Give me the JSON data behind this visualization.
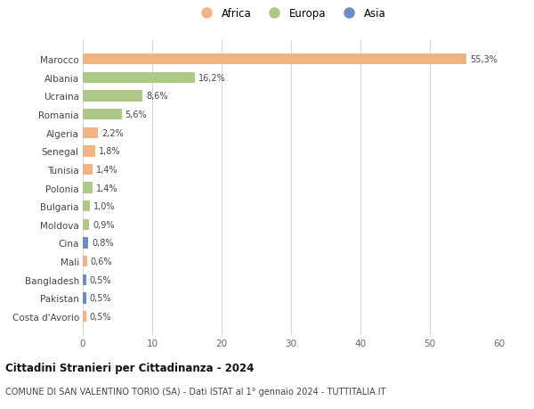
{
  "countries": [
    "Marocco",
    "Albania",
    "Ucraina",
    "Romania",
    "Algeria",
    "Senegal",
    "Tunisia",
    "Polonia",
    "Bulgaria",
    "Moldova",
    "Cina",
    "Mali",
    "Bangladesh",
    "Pakistan",
    "Costa d'Avorio"
  ],
  "values": [
    55.3,
    16.2,
    8.6,
    5.6,
    2.2,
    1.8,
    1.4,
    1.4,
    1.0,
    0.9,
    0.8,
    0.6,
    0.5,
    0.5,
    0.5
  ],
  "labels": [
    "55,3%",
    "16,2%",
    "8,6%",
    "5,6%",
    "2,2%",
    "1,8%",
    "1,4%",
    "1,4%",
    "1,0%",
    "0,9%",
    "0,8%",
    "0,6%",
    "0,5%",
    "0,5%",
    "0,5%"
  ],
  "continents": [
    "Africa",
    "Europa",
    "Europa",
    "Europa",
    "Africa",
    "Africa",
    "Africa",
    "Europa",
    "Europa",
    "Europa",
    "Asia",
    "Africa",
    "Asia",
    "Asia",
    "Africa"
  ],
  "colors": {
    "Africa": "#f0b482",
    "Europa": "#aec987",
    "Asia": "#6b8fc4"
  },
  "legend_order": [
    "Africa",
    "Europa",
    "Asia"
  ],
  "title": "Cittadini Stranieri per Cittadinanza - 2024",
  "subtitle": "COMUNE DI SAN VALENTINO TORIO (SA) - Dati ISTAT al 1° gennaio 2024 - TUTTITALIA.IT",
  "xlim": [
    0,
    60
  ],
  "xticks": [
    0,
    10,
    20,
    30,
    40,
    50,
    60
  ],
  "bg_color": "#ffffff",
  "grid_color": "#d8d8d8",
  "bar_height": 0.6
}
